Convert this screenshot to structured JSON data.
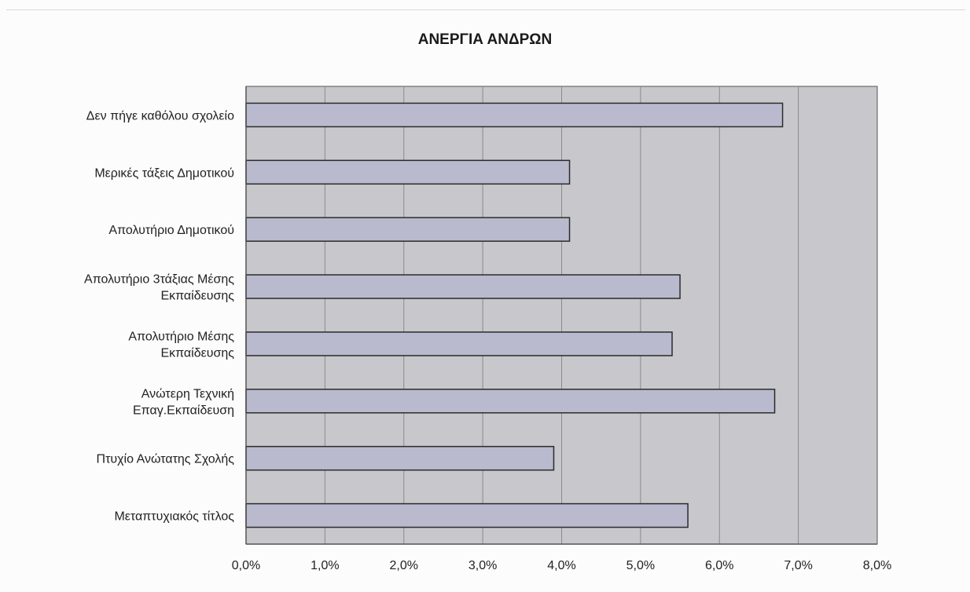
{
  "chart_data": {
    "type": "bar",
    "orientation": "horizontal",
    "title": "ΑΝΕΡΓΙΑ ΑΝΔΡΩΝ",
    "categories": [
      [
        "Δεν πήγε καθόλου σχολείο"
      ],
      [
        "Μερικές τάξεις Δημοτικού"
      ],
      [
        "Απολυτήριο Δημοτικού"
      ],
      [
        "Απολυτήριο 3τάξιας Μέσης",
        "Εκπαίδευσης"
      ],
      [
        "Απολυτήριο Μέσης",
        "Εκπαίδευσης"
      ],
      [
        "Ανώτερη Τεχνική",
        "Επαγ.Εκπαίδευση"
      ],
      [
        "Πτυχίο Ανώτατης Σχολής"
      ],
      [
        "Μεταπτυχιακός τίτλος"
      ]
    ],
    "values": [
      6.8,
      4.1,
      4.1,
      5.5,
      5.4,
      6.7,
      3.9,
      5.6
    ],
    "value_unit": "%",
    "xlim": [
      0,
      8
    ],
    "xticks": [
      "0,0%",
      "1,0%",
      "2,0%",
      "3,0%",
      "4,0%",
      "5,0%",
      "6,0%",
      "7,0%",
      "8,0%"
    ],
    "grid": true,
    "legend": "none",
    "colors": {
      "plot_background": "#c8c8cc",
      "bar_fill": "#b9bace",
      "bar_stroke": "#2b2b2b",
      "grid": "#8a8a8a"
    }
  }
}
